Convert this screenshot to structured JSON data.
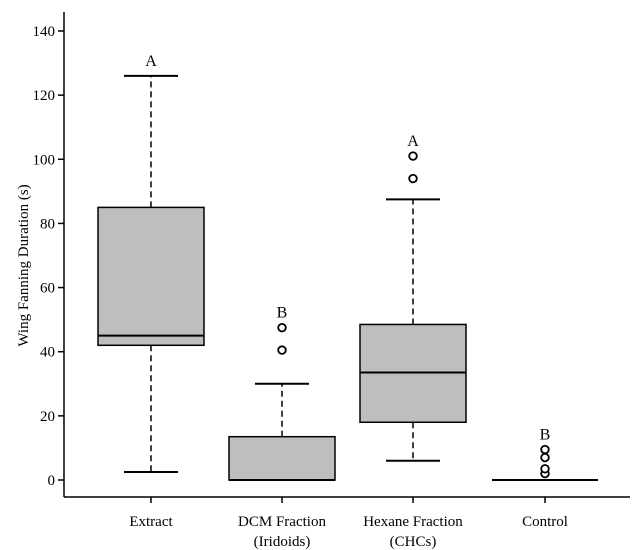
{
  "chart_data": {
    "type": "boxplot",
    "ylabel": "Wing Fanning Duration (s)",
    "xlabel": "",
    "ylim": [
      0,
      140
    ],
    "yticks": [
      0,
      20,
      40,
      60,
      80,
      100,
      120,
      140
    ],
    "grid": false,
    "categories": [
      {
        "lines": [
          "Extract"
        ]
      },
      {
        "lines": [
          "DCM Fraction",
          "(Iridoids)"
        ]
      },
      {
        "lines": [
          "Hexane Fraction",
          "(CHCs)"
        ]
      },
      {
        "lines": [
          "Control"
        ]
      }
    ],
    "boxes": [
      {
        "whisker_low": 2.5,
        "q1": 42,
        "median": 45,
        "q3": 85,
        "whisker_high": 126,
        "outliers": [],
        "letter": "A"
      },
      {
        "whisker_low": 0,
        "q1": 0,
        "median": 0,
        "q3": 13.5,
        "whisker_high": 30,
        "outliers": [
          40.5,
          47.5
        ],
        "letter": "B"
      },
      {
        "whisker_low": 6,
        "q1": 18,
        "median": 33.5,
        "q3": 48.5,
        "whisker_high": 87.5,
        "outliers": [
          94,
          101
        ],
        "letter": "A"
      },
      {
        "whisker_low": 0,
        "q1": 0,
        "median": 0,
        "q3": 0,
        "whisker_high": 0,
        "outliers": [
          2,
          3.5,
          7,
          9.5
        ],
        "letter": "B"
      }
    ],
    "colors": {
      "box_fill": "#bebebe",
      "stroke": "#000000"
    }
  }
}
